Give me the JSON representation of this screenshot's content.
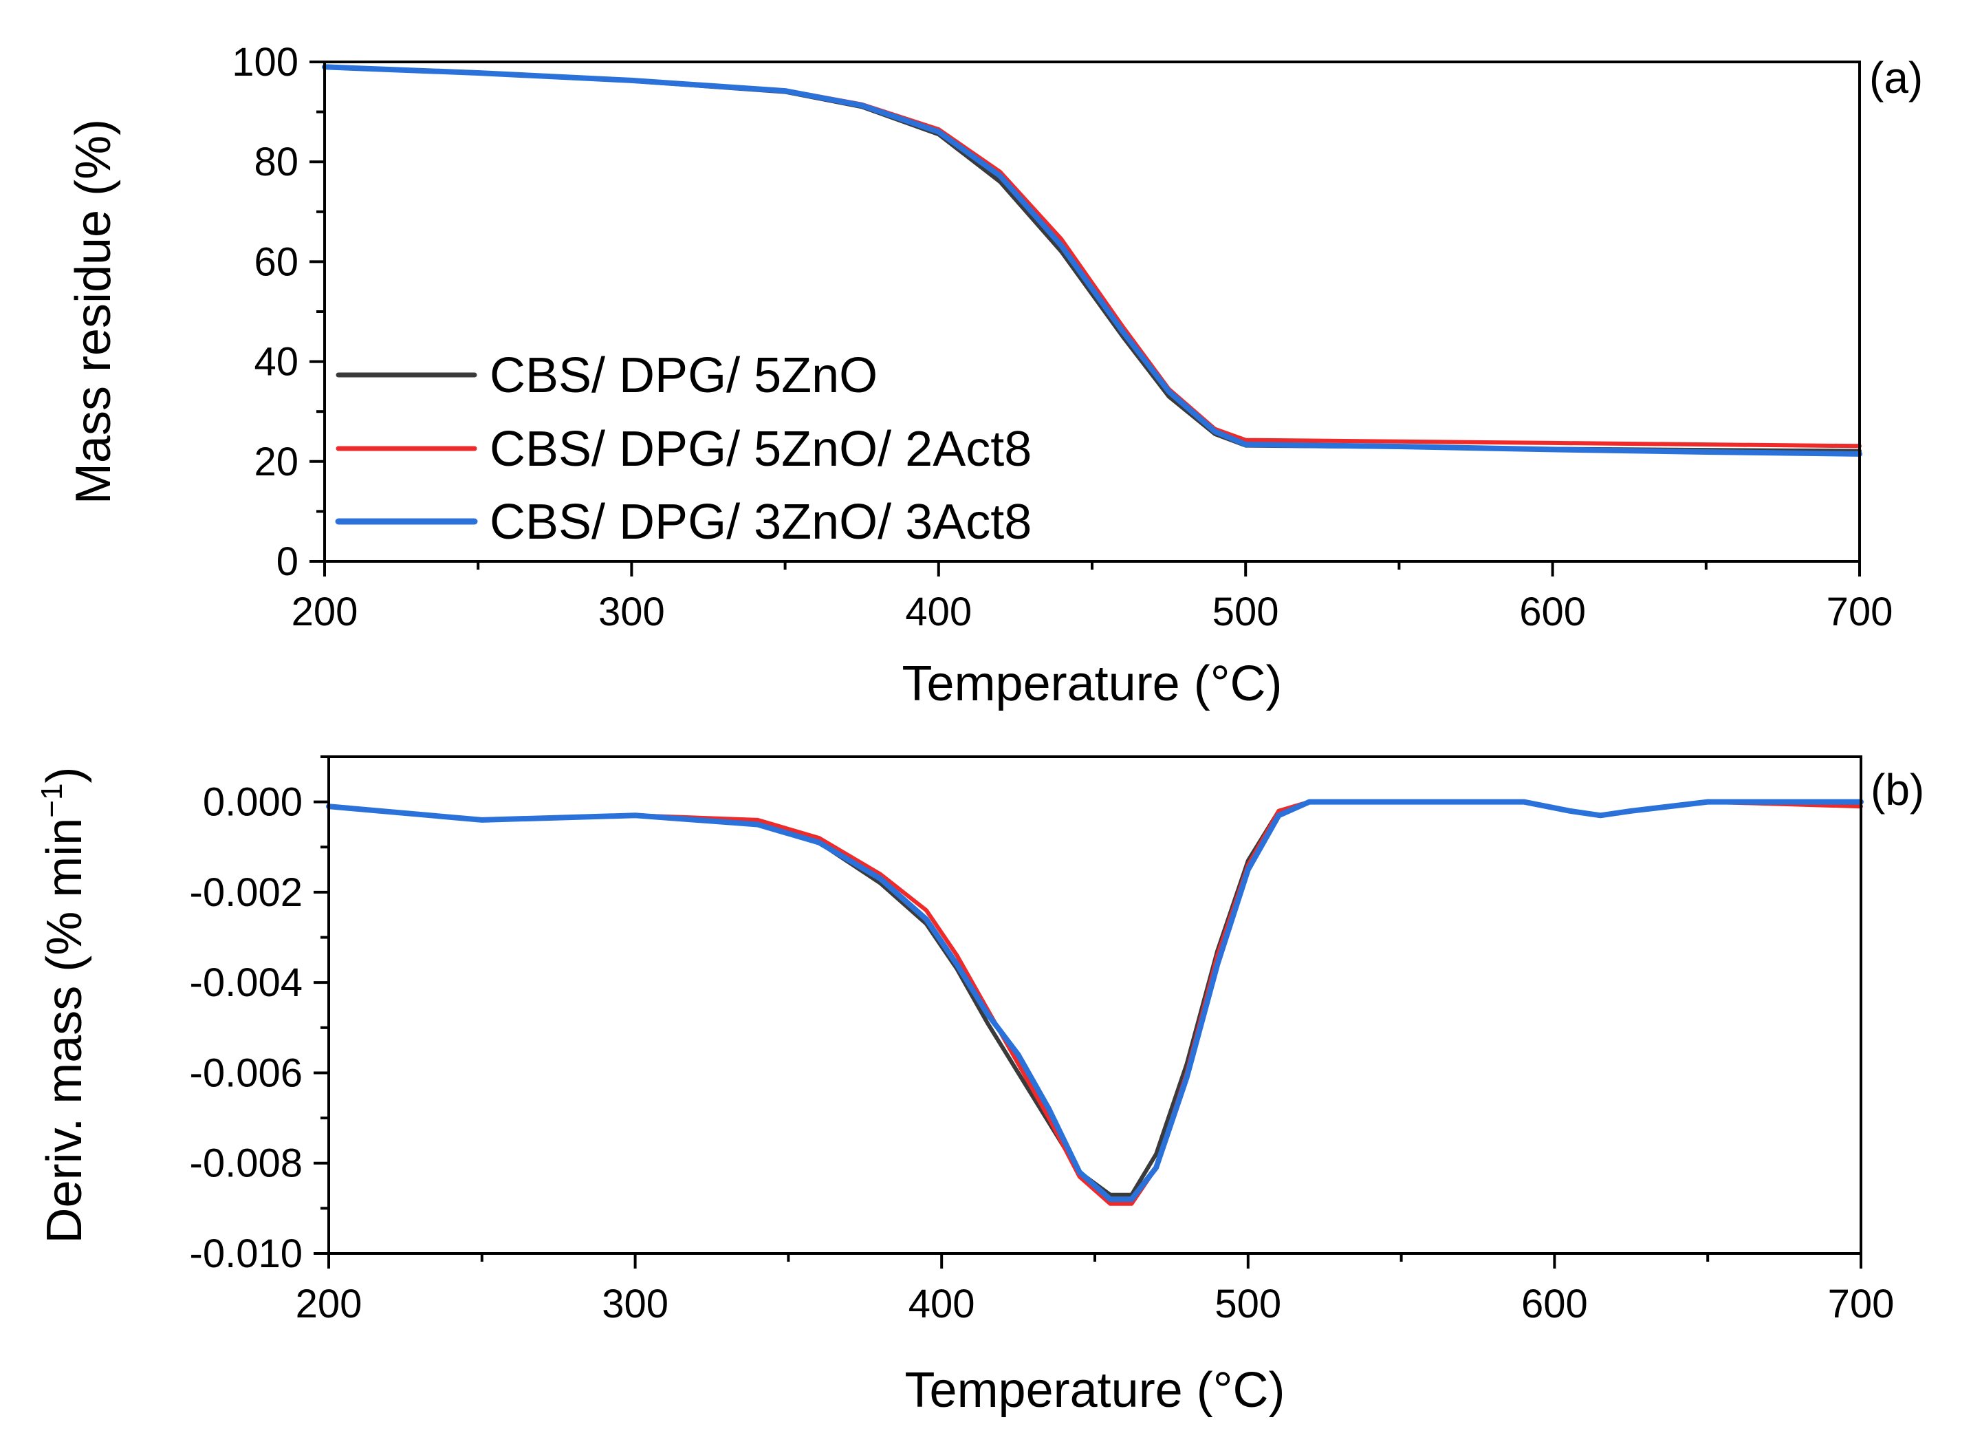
{
  "chart_data": [
    {
      "panel_label": "(a)",
      "type": "line",
      "xlabel": "Temperature (°C)",
      "ylabel": "Mass residue (%)",
      "xlim": [
        200,
        700
      ],
      "ylim": [
        0,
        100
      ],
      "xticks": [
        200,
        300,
        400,
        500,
        600,
        700
      ],
      "xtick_labels": [
        "200",
        "300",
        "400",
        "500",
        "600",
        "700"
      ],
      "yticks": [
        0,
        20,
        40,
        60,
        80,
        100
      ],
      "ytick_labels": [
        "0",
        "20",
        "40",
        "60",
        "80",
        "100"
      ],
      "legend": {
        "position": "lower-left"
      },
      "series": [
        {
          "name": "CBS/ DPG/ 5ZnO",
          "color": "#3a3a3a",
          "x": [
            200,
            250,
            300,
            350,
            375,
            400,
            420,
            440,
            460,
            475,
            490,
            500,
            550,
            600,
            650,
            700
          ],
          "y": [
            99,
            97.8,
            96.2,
            94,
            91,
            85.5,
            76,
            62,
            45,
            33,
            25.5,
            23.2,
            22.9,
            22.5,
            22.3,
            22.1
          ]
        },
        {
          "name": "CBS/ DPG/ 5ZnO/ 2Act8",
          "color": "#ee2a2a",
          "x": [
            200,
            250,
            300,
            350,
            375,
            400,
            420,
            440,
            460,
            475,
            490,
            500,
            550,
            600,
            650,
            700
          ],
          "y": [
            99,
            97.9,
            96.3,
            94.3,
            91.5,
            86.5,
            78,
            64.5,
            47,
            34.5,
            26.5,
            24.3,
            24,
            23.7,
            23.4,
            23.1
          ]
        },
        {
          "name": "CBS/ DPG/ 3ZnO/ 3Act8",
          "color": "#2a72d9",
          "x": [
            200,
            250,
            300,
            350,
            375,
            400,
            420,
            440,
            460,
            475,
            490,
            500,
            550,
            600,
            650,
            700
          ],
          "y": [
            99,
            97.8,
            96.3,
            94.2,
            91.3,
            86,
            77.2,
            63.2,
            46,
            34,
            26,
            23.4,
            23,
            22.4,
            21.9,
            21.5
          ]
        }
      ]
    },
    {
      "panel_label": "(b)",
      "type": "line",
      "xlabel": "Temperature (°C)",
      "ylabel": "Deriv. mass (% min",
      "ylabel_superscript": "−1",
      "ylabel_close": ")",
      "xlim": [
        200,
        700
      ],
      "ylim": [
        -0.01,
        0.001
      ],
      "xticks": [
        200,
        300,
        400,
        500,
        600,
        700
      ],
      "xtick_labels": [
        "200",
        "300",
        "400",
        "500",
        "600",
        "700"
      ],
      "yticks": [
        0.0,
        -0.002,
        -0.004,
        -0.006,
        -0.008,
        -0.01
      ],
      "ytick_labels": [
        "0.000",
        "-0.002",
        "-0.004",
        "-0.006",
        "-0.008",
        "-0.010"
      ],
      "series": [
        {
          "name": "CBS/ DPG/ 5ZnO",
          "color": "#3a3a3a",
          "x": [
            200,
            250,
            300,
            340,
            360,
            380,
            395,
            405,
            415,
            425,
            435,
            445,
            455,
            462,
            470,
            480,
            490,
            500,
            510,
            520,
            550,
            590,
            605,
            615,
            625,
            650,
            700
          ],
          "y": [
            -0.0001,
            -0.0004,
            -0.0003,
            -0.0005,
            -0.0009,
            -0.0018,
            -0.0027,
            -0.0037,
            -0.0049,
            -0.006,
            -0.0071,
            -0.0082,
            -0.0087,
            -0.0087,
            -0.0078,
            -0.0058,
            -0.0033,
            -0.0013,
            -0.0002,
            0.0,
            0.0,
            0.0,
            -0.0002,
            -0.0003,
            -0.0002,
            0.0,
            0.0
          ]
        },
        {
          "name": "CBS/ DPG/ 5ZnO/ 2Act8",
          "color": "#ee2a2a",
          "x": [
            200,
            250,
            300,
            340,
            360,
            380,
            395,
            405,
            415,
            425,
            435,
            445,
            455,
            462,
            470,
            480,
            490,
            500,
            510,
            520,
            550,
            590,
            605,
            615,
            625,
            650,
            700
          ],
          "y": [
            -0.0001,
            -0.0004,
            -0.0003,
            -0.0004,
            -0.0008,
            -0.0016,
            -0.0024,
            -0.0034,
            -0.0046,
            -0.0058,
            -0.007,
            -0.0083,
            -0.0089,
            -0.0089,
            -0.0081,
            -0.006,
            -0.0034,
            -0.0014,
            -0.0002,
            0.0,
            0.0,
            0.0,
            -0.0002,
            -0.0003,
            -0.0002,
            0.0,
            -0.0001
          ]
        },
        {
          "name": "CBS/ DPG/ 3ZnO/ 3Act8",
          "color": "#2a72d9",
          "x": [
            200,
            250,
            300,
            340,
            360,
            380,
            395,
            405,
            415,
            425,
            435,
            445,
            455,
            462,
            470,
            480,
            490,
            500,
            510,
            520,
            550,
            590,
            605,
            615,
            625,
            650,
            700
          ],
          "y": [
            -0.0001,
            -0.0004,
            -0.0003,
            -0.0005,
            -0.0009,
            -0.0017,
            -0.0026,
            -0.0036,
            -0.0047,
            -0.0056,
            -0.0068,
            -0.0082,
            -0.0088,
            -0.0088,
            -0.0081,
            -0.0061,
            -0.0036,
            -0.0015,
            -0.0003,
            0.0,
            0.0,
            0.0,
            -0.0002,
            -0.0003,
            -0.0002,
            0.0,
            0.0
          ]
        }
      ]
    }
  ]
}
